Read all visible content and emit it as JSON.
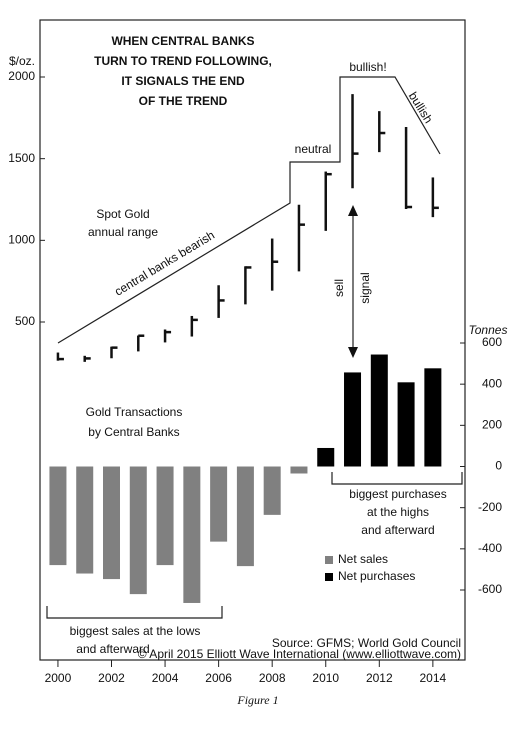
{
  "chart_data": [
    {
      "type": "range",
      "title": [
        "WHEN CENTRAL BANKS",
        "TURN TO TREND FOLLOWING,",
        "IT SIGNALS THE END",
        "OF THE TREND"
      ],
      "y_label": "$/oz.",
      "annotations": [
        "Spot Gold",
        "annual range",
        "central banks bearish",
        "neutral",
        "bullish!",
        "bullish",
        "sell",
        "signal"
      ],
      "x": [
        2000,
        2001,
        2002,
        2003,
        2004,
        2005,
        2006,
        2007,
        2008,
        2009,
        2010,
        2011,
        2012,
        2013,
        2014
      ],
      "high": [
        313,
        293,
        349,
        417,
        454,
        537,
        725,
        841,
        1011,
        1218,
        1421,
        1895,
        1791,
        1694,
        1385
      ],
      "low": [
        263,
        256,
        278,
        320,
        375,
        411,
        525,
        608,
        692,
        810,
        1058,
        1319,
        1540,
        1192,
        1142
      ],
      "close": [
        273,
        277,
        343,
        416,
        438,
        513,
        632,
        834,
        869,
        1096,
        1405,
        1531,
        1657,
        1204,
        1199
      ],
      "color": "#111111",
      "xlim": [
        1999.33,
        2015.2
      ],
      "xticks": [
        2000,
        2002,
        2004,
        2006,
        2008,
        2010,
        2012,
        2014
      ],
      "ylim": [
        500,
        2000
      ],
      "yticks": [
        500,
        1000,
        1500,
        2000
      ]
    },
    {
      "type": "bar",
      "title": [
        "Gold Transactions",
        "by Central Banks"
      ],
      "y_label": "Tonnes",
      "annotations": [
        "biggest purchases",
        "at the highs",
        "and afterward",
        "biggest sales at the lows",
        "and afterward"
      ],
      "source": "Source: GFMS; World Gold Council",
      "copyright": "© April 2015 Elliott Wave International (www.elliottwave.com)",
      "caption": "Figure 1",
      "x": [
        2000,
        2001,
        2002,
        2003,
        2004,
        2005,
        2006,
        2007,
        2008,
        2009,
        2010,
        2011,
        2012,
        2013,
        2014
      ],
      "xlim": [
        1999.33,
        2015.2
      ],
      "series": [
        {
          "name": "Net sales",
          "color": "#808080",
          "values": [
            -479,
            -520,
            -547,
            -620,
            -479,
            -663,
            -365,
            -484,
            -235,
            -34,
            null,
            null,
            null,
            null,
            null
          ]
        },
        {
          "name": "Net purchases",
          "color": "#000000",
          "values": [
            null,
            null,
            null,
            null,
            null,
            null,
            null,
            null,
            null,
            null,
            90,
            457,
            544,
            409,
            477
          ]
        }
      ],
      "ylim": [
        -600,
        600
      ],
      "yticks": [
        -600,
        -400,
        -200,
        0,
        200,
        400,
        600
      ]
    }
  ]
}
